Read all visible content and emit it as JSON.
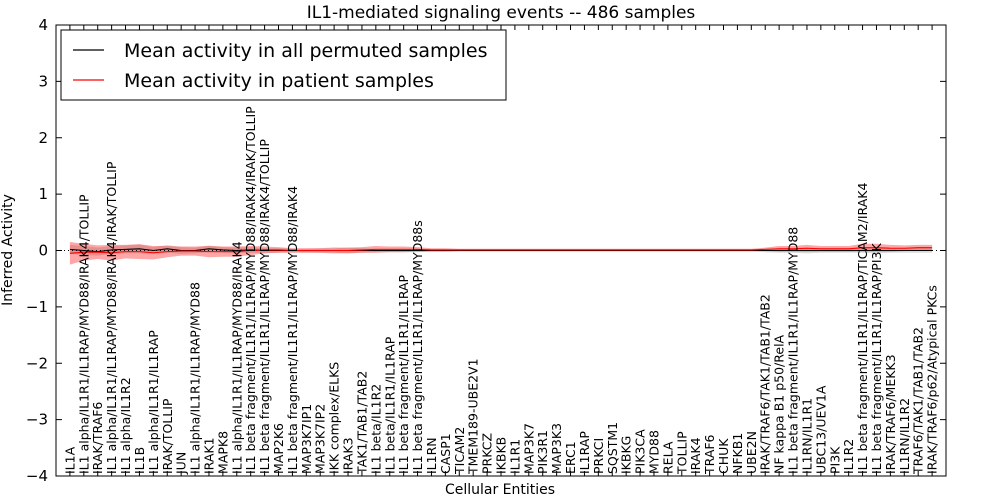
{
  "chart_data": {
    "type": "line",
    "title": "IL1-mediated signaling events -- 486 samples",
    "xlabel": "Cellular Entities",
    "ylabel": "Inferred Activity",
    "ylim": [
      -4,
      4
    ],
    "yticks": [
      -4,
      -3,
      -2,
      -1,
      0,
      1,
      2,
      3,
      4
    ],
    "ytick_labels": [
      "−4",
      "−3",
      "−2",
      "−1",
      "0",
      "1",
      "2",
      "3",
      "4"
    ],
    "legend_position": "top-left",
    "categories": [
      "IL1A",
      "IL1 alpha/IL1R1/IL1RAP/MYD88/IRAK4/TOLLIP",
      "IRAK/TRAF6",
      "IL1 alpha/IL1R1/IL1RAP/MYD88/IRAK4/IRAK/TOLLIP",
      "IL1 alpha/IL1R2",
      "IL1B",
      "IL1 alpha/IL1R1/IL1RAP",
      "IRAK/TOLLIP",
      "JUN",
      "IL1 alpha/IL1R1/IL1RAP/MYD88",
      "IRAK1",
      "MAPK8",
      "IL1 alpha/IL1R1/IL1RAP/MYD88/IRAK4",
      "IL1 beta fragment/IL1R1/IL1RAP/MYD88/IRAK4/IRAK/TOLLIP",
      "IL1 beta fragment/IL1R1/IL1RAP/MYD88/IRAK4/TOLLIP",
      "MAP2K6",
      "IL1 beta fragment/IL1R1/IL1RAP/MYD88/IRAK4",
      "MAP3K7IP1",
      "MAP3K7IP2",
      "IKK complex/ELKS",
      "IRAK3",
      "TAK1/TAB1/TAB2",
      "IL1 beta/IL1R2",
      "IL1 beta/IL1R1/IL1RAP",
      "IL1 beta fragment/IL1R1/IL1RAP",
      "IL1 beta fragment/IL1R1/IL1RAP/MYD88s",
      "IL1RN",
      "CASP1",
      "TICAM2",
      "TMEM189-UBE2V1",
      "PRKCZ",
      "IKBKB",
      "IL1R1",
      "MAP3K7",
      "PIK3R1",
      "MAP3K3",
      "ERC1",
      "IL1RAP",
      "PRKCI",
      "SQSTM1",
      "IKBKG",
      "PIK3CA",
      "MYD88",
      "RELA",
      "TOLLIP",
      "IRAK4",
      "TRAF6",
      "CHUK",
      "NFKB1",
      "UBE2N",
      "IRAK/TRAF6/TAK1/TAB1/TAB2",
      "NF kappa B1 p50/RelA",
      "IL1 beta fragment/IL1R1/IL1RAP/MYD88",
      "IL1RN/IL1R1",
      "UBC13/UEV1A",
      "PI3K",
      "IL1R2",
      "IL1 beta fragment/IL1R1/IL1RAP/TICAM2/IRAK4",
      "IL1 beta fragment/IL1R1/IL1RAP/PI3K",
      "IRAK/TRAF6/MEKK3",
      "IL1RN/IL1R2",
      "TRAF6/TAK1/TAB1/TAB2",
      "IRAK/TRAF6/p62/Atypical PKCs"
    ],
    "series": [
      {
        "name": "Mean activity in all permuted samples",
        "color": "#000000",
        "values": [
          0.02,
          0.0,
          -0.02,
          0.01,
          0.02,
          0.03,
          0.0,
          0.03,
          0.0,
          0.0,
          0.03,
          0.01,
          0.0,
          0.01,
          0.0,
          0.0,
          0.0,
          0.0,
          0.0,
          0.0,
          0.0,
          0.0,
          0.0,
          0.0,
          0.0,
          0.0,
          0.0,
          0.0,
          0.0,
          0.0,
          0.0,
          0.0,
          0.0,
          0.0,
          0.0,
          0.0,
          0.0,
          0.0,
          0.0,
          0.0,
          0.0,
          0.0,
          0.0,
          0.0,
          0.0,
          0.0,
          0.0,
          0.0,
          0.0,
          0.0,
          0.0,
          0.0,
          0.0,
          0.0,
          0.0,
          0.0,
          0.0,
          0.0,
          0.0,
          0.0,
          0.0,
          0.0,
          0.0
        ],
        "band": [
          0.08,
          0.08,
          0.07,
          0.07,
          0.07,
          0.08,
          0.06,
          0.07,
          0.06,
          0.05,
          0.06,
          0.05,
          0.05,
          0.05,
          0.04,
          0.04,
          0.03,
          0.03,
          0.04,
          0.06,
          0.05,
          0.04,
          0.03,
          0.03,
          0.03,
          0.03,
          0.02,
          0.02,
          0.02,
          0.02,
          0.02,
          0.02,
          0.02,
          0.02,
          0.02,
          0.02,
          0.02,
          0.02,
          0.02,
          0.02,
          0.02,
          0.02,
          0.02,
          0.02,
          0.02,
          0.02,
          0.02,
          0.02,
          0.02,
          0.02,
          0.03,
          0.04,
          0.04,
          0.05,
          0.04,
          0.04,
          0.04,
          0.04,
          0.05,
          0.04,
          0.04,
          0.04,
          0.04
        ]
      },
      {
        "name": "Mean activity in patient samples",
        "color": "#ff0000",
        "values": [
          -0.05,
          -0.03,
          -0.03,
          -0.04,
          -0.02,
          -0.02,
          -0.04,
          -0.02,
          -0.01,
          -0.01,
          -0.02,
          -0.02,
          -0.02,
          0.0,
          0.01,
          0.01,
          0.0,
          0.0,
          0.0,
          0.0,
          0.0,
          0.01,
          0.02,
          0.02,
          0.02,
          0.02,
          0.01,
          0.01,
          0.01,
          0.01,
          0.01,
          0.01,
          0.01,
          0.01,
          0.01,
          0.01,
          0.01,
          0.01,
          0.01,
          0.01,
          0.01,
          0.01,
          0.01,
          0.01,
          0.01,
          0.01,
          0.01,
          0.01,
          0.01,
          0.01,
          0.02,
          0.03,
          0.03,
          0.04,
          0.03,
          0.03,
          0.03,
          0.05,
          0.05,
          0.04,
          0.04,
          0.05,
          0.05
        ],
        "band": [
          0.2,
          0.15,
          0.12,
          0.14,
          0.12,
          0.13,
          0.12,
          0.1,
          0.08,
          0.08,
          0.1,
          0.09,
          0.09,
          0.08,
          0.06,
          0.05,
          0.04,
          0.04,
          0.04,
          0.04,
          0.05,
          0.05,
          0.06,
          0.05,
          0.05,
          0.04,
          0.03,
          0.03,
          0.02,
          0.02,
          0.02,
          0.02,
          0.02,
          0.02,
          0.02,
          0.02,
          0.02,
          0.02,
          0.02,
          0.02,
          0.02,
          0.02,
          0.02,
          0.02,
          0.02,
          0.02,
          0.02,
          0.02,
          0.02,
          0.02,
          0.03,
          0.05,
          0.05,
          0.06,
          0.05,
          0.05,
          0.05,
          0.07,
          0.07,
          0.06,
          0.05,
          0.05,
          0.05
        ]
      }
    ]
  }
}
